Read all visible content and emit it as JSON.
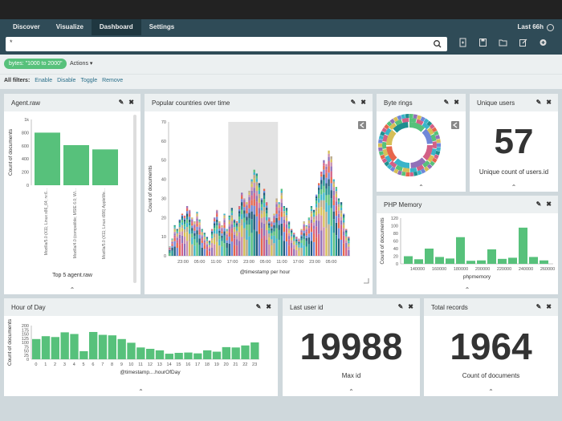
{
  "nav": {
    "tabs": [
      {
        "label": "Discover"
      },
      {
        "label": "Visualize"
      },
      {
        "label": "Dashboard"
      },
      {
        "label": "Settings"
      }
    ],
    "time_label": "Last 66h",
    "clock_icon": "clock-icon"
  },
  "search": {
    "value": "*",
    "search_icon": "search-icon",
    "toolbar_icons": [
      "new-dashboard-icon",
      "save-icon",
      "open-icon",
      "share-icon",
      "add-panel-icon"
    ]
  },
  "filter": {
    "pill_label": "bytes: \"1000 to 2000\"",
    "actions_label": "Actions ▾"
  },
  "all_filters": {
    "label": "All filters:",
    "links": [
      "Enable",
      "Disable",
      "Toggle",
      "Remove"
    ]
  },
  "panels": {
    "agent": {
      "title": "Agent.raw",
      "edit": "✎",
      "close": "✖"
    },
    "countries": {
      "title": "Popular countries over time",
      "edit": "✎",
      "close": "✖"
    },
    "byte_rings": {
      "title": "Byte rings",
      "edit": "✎",
      "close": "✖"
    },
    "unique_users": {
      "title": "Unique users",
      "value": "57",
      "label": "Unique count of users.id",
      "edit": "✎",
      "close": "✖"
    },
    "php_memory": {
      "title": "PHP Memory",
      "edit": "✎",
      "close": "✖"
    },
    "hour_of_day": {
      "title": "Hour of Day",
      "edit": "✎",
      "close": "✖"
    },
    "last_user": {
      "title": "Last user id",
      "value": "19988",
      "label": "Max id",
      "edit": "✎",
      "close": "✖"
    },
    "total_records": {
      "title": "Total records",
      "value": "1964",
      "label": "Count of documents",
      "edit": "✎",
      "close": "✖"
    },
    "collapse_glyph": "⌃"
  },
  "chart_data": [
    {
      "type": "bar",
      "title": "Agent.raw",
      "xlabel": "Top 5 agent.raw",
      "ylabel": "Count of documents",
      "ylim": [
        0,
        1000
      ],
      "yticks": [
        "0",
        "200",
        "400",
        "600",
        "800",
        "1k"
      ],
      "categories": [
        "Mozilla/5.0 (X11; Linux x86_64; rv:6...",
        "Mozilla/4.0 (compatible; MSIE 6.0; Wi...",
        "Mozilla/5.0 (X11; Linux i686) AppleWe..."
      ],
      "values": [
        800,
        610,
        545
      ],
      "color": "#57c17b"
    },
    {
      "type": "bar",
      "title": "Popular countries over time",
      "xlabel": "@timestamp per hour",
      "ylabel": "Count of documents",
      "ylim": [
        0,
        70
      ],
      "yticks": [
        "0",
        "10",
        "20",
        "30",
        "40",
        "50",
        "60",
        "70"
      ],
      "xticks": [
        "23:00",
        "05:00",
        "11:00",
        "17:00",
        "23:00",
        "05:00",
        "11:00",
        "17:00",
        "23:00",
        "05:00"
      ],
      "values": [
        5,
        9,
        16,
        14,
        19,
        22,
        21,
        26,
        24,
        20,
        18,
        23,
        19,
        14,
        12,
        10,
        8,
        14,
        20,
        24,
        18,
        16,
        22,
        14,
        21,
        25,
        19,
        18,
        26,
        33,
        30,
        28,
        34,
        40,
        45,
        43,
        38,
        30,
        35,
        28,
        20,
        18,
        22,
        30,
        28,
        35,
        26,
        25,
        18,
        14,
        12,
        10,
        9,
        14,
        18,
        16,
        20,
        26,
        24,
        32,
        38,
        44,
        50,
        48,
        55,
        52,
        40,
        36,
        30,
        28,
        22,
        14,
        10
      ],
      "series_colors": [
        "#57c17b",
        "#1f8f8f",
        "#1f5a7a",
        "#6f87d8",
        "#e7664c",
        "#d36086",
        "#9170b8",
        "#ca8eae",
        "#d6bf57",
        "#b9a888",
        "#3ab4c9"
      ],
      "shaded_band": [
        24,
        44
      ]
    },
    {
      "type": "pie",
      "title": "Byte rings",
      "rings": 3,
      "colors": [
        "#57c17b",
        "#6f87d8",
        "#d36086",
        "#9170b8",
        "#3ab4c9",
        "#e7664c",
        "#d6bf57",
        "#1f8f8f"
      ]
    },
    {
      "type": "bar",
      "title": "PHP Memory",
      "xlabel": "phpmemory",
      "ylabel": "Count of documents",
      "yticks": [
        "0",
        "20",
        "40",
        "60",
        "80",
        "100",
        "120"
      ],
      "xticks": [
        "140000",
        "160000",
        "180000",
        "200000",
        "220000",
        "240000",
        "260000"
      ],
      "values": [
        20,
        12,
        40,
        18,
        14,
        70,
        8,
        9,
        38,
        13,
        16,
        95,
        18,
        9
      ],
      "color": "#57c17b"
    },
    {
      "type": "bar",
      "title": "Hour of Day",
      "xlabel": "@timestamp....hourOfDay",
      "ylabel": "Count of documents",
      "ylim": [
        0,
        200
      ],
      "yticks": [
        "0",
        "25",
        "50",
        "75",
        "100",
        "125",
        "150",
        "175",
        "200"
      ],
      "categories": [
        "0",
        "1",
        "2",
        "3",
        "4",
        "5",
        "6",
        "7",
        "8",
        "9",
        "10",
        "11",
        "12",
        "13",
        "14",
        "15",
        "16",
        "17",
        "18",
        "19",
        "20",
        "21",
        "22",
        "23"
      ],
      "values": [
        120,
        137,
        132,
        160,
        150,
        48,
        162,
        145,
        142,
        120,
        98,
        70,
        62,
        53,
        33,
        38,
        40,
        35,
        53,
        45,
        72,
        70,
        82,
        100
      ],
      "color": "#57c17b"
    }
  ]
}
